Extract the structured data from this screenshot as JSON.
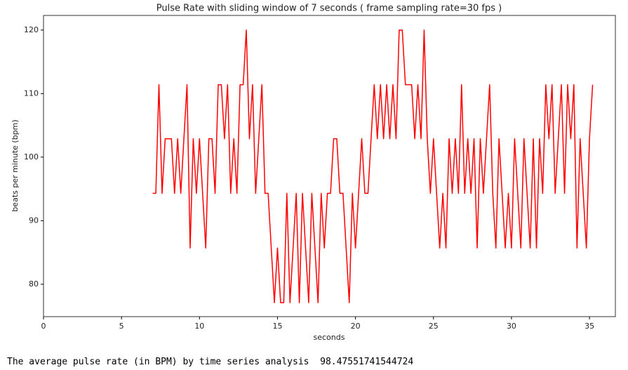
{
  "chart_data": {
    "type": "line",
    "title": "Pulse Rate with sliding window of 7 seconds  ( frame sampling rate=30 fps )",
    "xlabel": "seconds",
    "ylabel": "beats per minute (bpm)",
    "x": [
      7.0,
      7.2,
      7.4,
      7.6,
      7.8,
      8.0,
      8.2,
      8.4,
      8.6,
      8.8,
      9.0,
      9.2,
      9.4,
      9.6,
      9.8,
      10.0,
      10.2,
      10.4,
      10.6,
      10.8,
      11.0,
      11.2,
      11.4,
      11.6,
      11.8,
      12.0,
      12.2,
      12.4,
      12.6,
      12.8,
      13.0,
      13.2,
      13.4,
      13.6,
      13.8,
      14.0,
      14.2,
      14.4,
      14.6,
      14.8,
      15.0,
      15.2,
      15.4,
      15.6,
      15.8,
      16.0,
      16.2,
      16.4,
      16.6,
      16.8,
      17.0,
      17.2,
      17.4,
      17.6,
      17.8,
      18.0,
      18.2,
      18.4,
      18.6,
      18.8,
      19.0,
      19.2,
      19.4,
      19.6,
      19.8,
      20.0,
      20.2,
      20.4,
      20.6,
      20.8,
      21.0,
      21.2,
      21.4,
      21.6,
      21.8,
      22.0,
      22.2,
      22.4,
      22.6,
      22.8,
      23.0,
      23.2,
      23.4,
      23.6,
      23.8,
      24.0,
      24.2,
      24.4,
      24.6,
      24.8,
      25.0,
      25.2,
      25.4,
      25.6,
      25.8,
      26.0,
      26.2,
      26.4,
      26.6,
      26.8,
      27.0,
      27.2,
      27.4,
      27.6,
      27.8,
      28.0,
      28.2,
      28.4,
      28.6,
      28.8,
      29.0,
      29.2,
      29.4,
      29.6,
      29.8,
      30.0,
      30.2,
      30.4,
      30.6,
      30.8,
      31.0,
      31.2,
      31.4,
      31.6,
      31.8,
      32.0,
      32.2,
      32.4,
      32.6,
      32.8,
      33.0,
      33.2,
      33.4,
      33.6,
      33.8,
      34.0,
      34.2,
      34.4,
      34.6,
      34.8,
      35.0,
      35.2
    ],
    "series": [
      {
        "color": "#ff0000",
        "values": [
          94.3,
          94.3,
          111.4,
          94.3,
          102.9,
          102.9,
          102.9,
          94.3,
          102.9,
          94.3,
          102.9,
          111.4,
          85.7,
          102.9,
          94.3,
          102.9,
          94.3,
          85.7,
          102.9,
          102.9,
          94.3,
          111.4,
          111.4,
          102.9,
          111.4,
          94.3,
          102.9,
          94.3,
          111.4,
          111.4,
          120,
          102.9,
          111.4,
          94.3,
          102.9,
          111.4,
          94.3,
          94.3,
          85.7,
          77.1,
          85.7,
          77.1,
          77.1,
          94.3,
          77.1,
          85.7,
          94.3,
          77.1,
          94.3,
          85.7,
          77.1,
          94.3,
          85.7,
          77.1,
          94.3,
          85.7,
          94.3,
          94.3,
          102.9,
          102.9,
          94.3,
          94.3,
          85.7,
          77.1,
          94.3,
          85.7,
          94.3,
          102.9,
          94.3,
          94.3,
          102.9,
          111.4,
          102.9,
          111.4,
          102.9,
          111.4,
          102.9,
          111.4,
          102.9,
          120,
          120,
          111.4,
          111.4,
          111.4,
          102.9,
          111.4,
          102.9,
          120,
          102.9,
          94.3,
          102.9,
          94.3,
          85.7,
          94.3,
          85.7,
          102.9,
          94.3,
          102.9,
          94.3,
          111.4,
          94.3,
          102.9,
          94.3,
          102.9,
          85.7,
          102.9,
          94.3,
          102.9,
          111.4,
          94.3,
          85.7,
          102.9,
          94.3,
          85.7,
          94.3,
          85.7,
          102.9,
          94.3,
          85.7,
          102.9,
          94.3,
          85.7,
          102.9,
          85.7,
          102.9,
          94.3,
          111.4,
          102.9,
          111.4,
          94.3,
          102.9,
          111.4,
          94.3,
          111.4,
          102.9,
          111.4,
          85.7,
          102.9,
          94.3,
          85.7,
          102.9,
          111.4
        ]
      }
    ],
    "xlim": [
      0,
      36.66
    ],
    "ylim": [
      74.9,
      122.3
    ],
    "xticks": [
      0,
      5,
      10,
      15,
      20,
      25,
      30,
      35
    ],
    "yticks": [
      80,
      90,
      100,
      110,
      120
    ]
  },
  "footer_text": "The average pulse rate (in BPM) by time series analysis  98.47551741544724"
}
